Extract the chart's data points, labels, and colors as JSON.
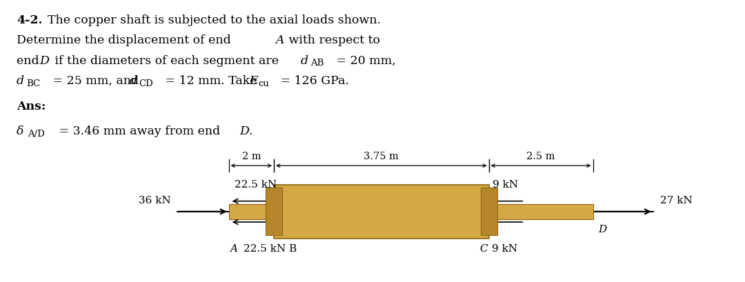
{
  "bg_color": "#ffffff",
  "shaft_color_main": "#D4A843",
  "shaft_color_dark": "#B8862A",
  "shaft_color_edge": "#8B6610",
  "dim_2m": "2 m",
  "dim_375m": "3.75 m",
  "dim_25m": "2.5 m",
  "force_36": "36 kN",
  "force_225_top": "22.5 kN",
  "force_225_bot": "22.5 kN B",
  "force_9_top": "9 kN",
  "force_9_bot": "9 kN",
  "force_27": "27 kN",
  "label_A": "A",
  "label_C": "C",
  "label_D": "D",
  "text_fontsize": 12.5,
  "sub_fontsize": 9.5
}
